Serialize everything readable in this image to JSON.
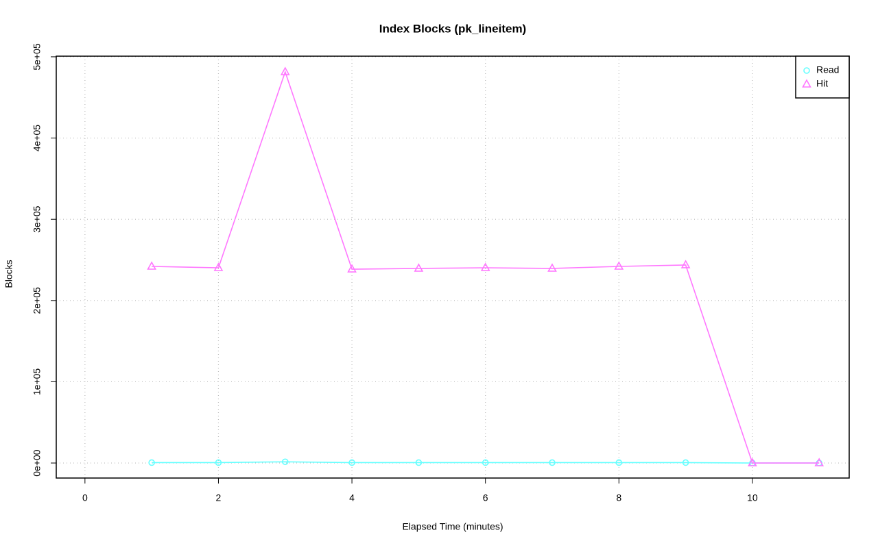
{
  "chart_data": {
    "type": "line",
    "title": "Index Blocks (pk_lineitem)",
    "xlabel": "Elapsed Time (minutes)",
    "ylabel": "Blocks",
    "x": [
      1,
      2,
      3,
      4,
      5,
      6,
      7,
      8,
      9,
      10,
      11
    ],
    "series": [
      {
        "name": "Read",
        "color": "#66ffff",
        "marker": "circle",
        "values": [
          500,
          500,
          1500,
          500,
          500,
          500,
          500,
          500,
          500,
          0,
          0
        ]
      },
      {
        "name": "Hit",
        "color": "#ff77ff",
        "marker": "triangle",
        "values": [
          242000,
          240300,
          481400,
          238600,
          239500,
          240300,
          239500,
          242000,
          243700,
          0,
          0
        ]
      }
    ],
    "xlim": [
      -0.43,
      11.45
    ],
    "ylim": [
      -18500,
      500800
    ],
    "xticks": [
      0,
      2,
      4,
      6,
      8,
      10
    ],
    "yticks": [
      {
        "value": 0,
        "label": "0e+00"
      },
      {
        "value": 100000,
        "label": "1e+05"
      },
      {
        "value": 200000,
        "label": "2e+05"
      },
      {
        "value": 300000,
        "label": "3e+05"
      },
      {
        "value": 400000,
        "label": "4e+05"
      },
      {
        "value": 500000,
        "label": "5e+05"
      }
    ],
    "grid": true,
    "legend": "top-right"
  }
}
